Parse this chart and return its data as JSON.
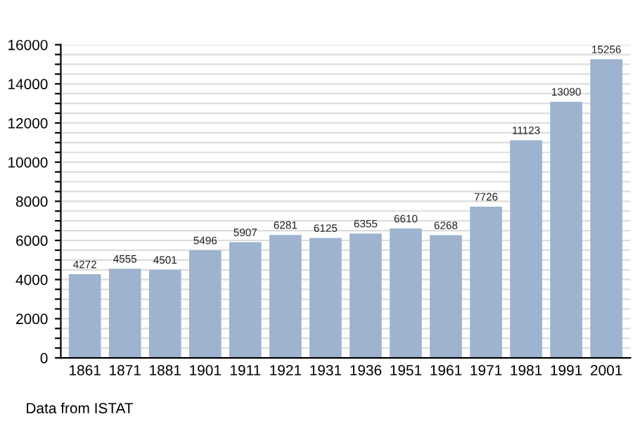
{
  "chart_data": {
    "type": "bar",
    "categories": [
      "1861",
      "1871",
      "1881",
      "1901",
      "1911",
      "1921",
      "1931",
      "1936",
      "1951",
      "1961",
      "1971",
      "1981",
      "1991",
      "2001"
    ],
    "values": [
      4272,
      4555,
      4501,
      5496,
      5907,
      6281,
      6125,
      6355,
      6610,
      6268,
      7726,
      11123,
      13090,
      15256
    ],
    "color": "#9db3cf",
    "data_labels": true,
    "grid": "y",
    "ylim": [
      0,
      16000
    ],
    "yticks": [
      0,
      {
        "value": 500,
        "label": null
      },
      {
        "value": 1000,
        "label": null
      },
      {
        "value": 1500,
        "label": null
      },
      2000,
      {
        "value": 2500,
        "label": null
      },
      {
        "value": 3000,
        "label": null
      },
      {
        "value": 3500,
        "label": null
      },
      4000,
      {
        "value": 4500,
        "label": null
      },
      {
        "value": 5000,
        "label": null
      },
      {
        "value": 5500,
        "label": null
      },
      6000,
      {
        "value": 6500,
        "label": null
      },
      {
        "value": 7000,
        "label": null
      },
      {
        "value": 7500,
        "label": null
      },
      8000,
      {
        "value": 8500,
        "label": null
      },
      {
        "value": 9000,
        "label": null
      },
      {
        "value": 9500,
        "label": null
      },
      10000,
      {
        "value": 10500,
        "label": null
      },
      {
        "value": 11000,
        "label": null
      },
      {
        "value": 11500,
        "label": null
      },
      12000,
      {
        "value": 12500,
        "label": null
      },
      {
        "value": 13000,
        "label": null
      },
      {
        "value": 13500,
        "label": null
      },
      14000,
      {
        "value": 14500,
        "label": null
      },
      {
        "value": 15000,
        "label": null
      },
      {
        "value": 15500,
        "label": null
      },
      16000
    ],
    "annotations": [
      "Data from ISTAT"
    ]
  }
}
